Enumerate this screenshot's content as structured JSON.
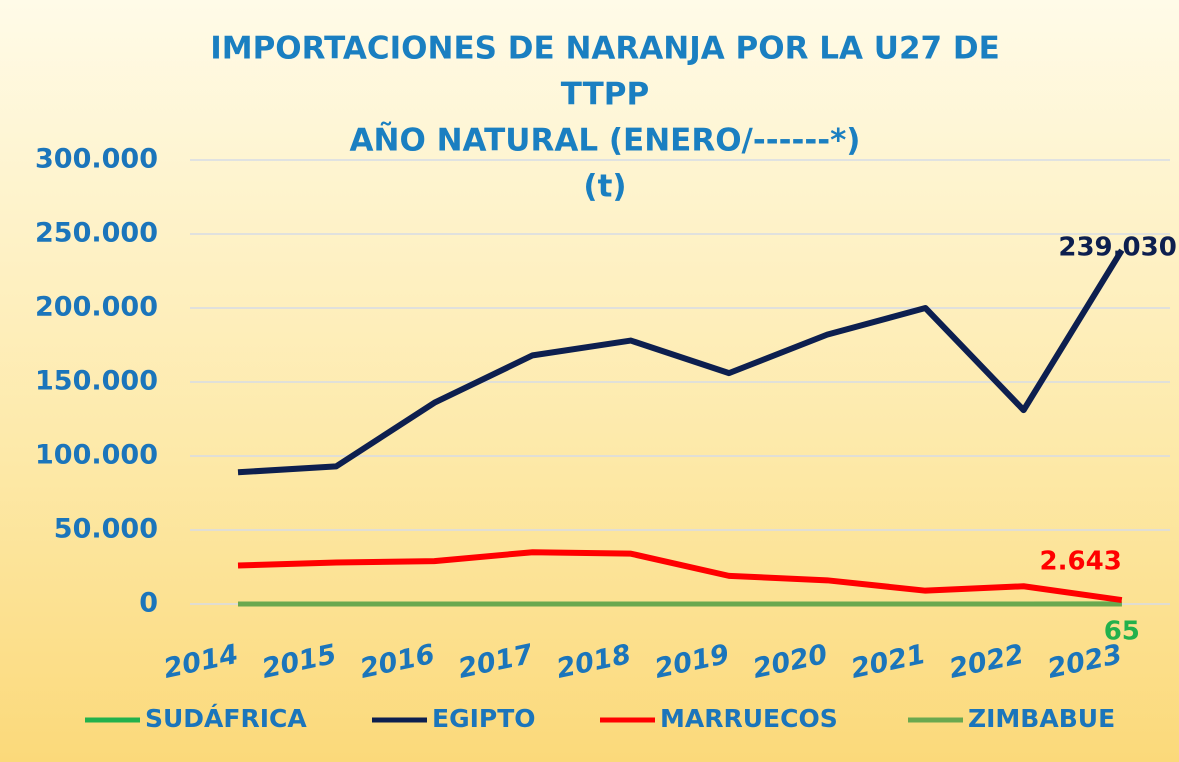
{
  "chart_data": {
    "type": "line",
    "title": [
      "IMPORTACIONES DE NARANJA POR LA U27 DE",
      "TTPP",
      "AÑO NATURAL (ENERO/------*)",
      "(t)"
    ],
    "categories": [
      "2014",
      "2015",
      "2016",
      "2017",
      "2018",
      "2019",
      "2020",
      "2021",
      "2022",
      "2023"
    ],
    "series": [
      {
        "name": "SUDÁFRICA",
        "color": "#22b14c",
        "values": [
          0,
          0,
          0,
          0,
          0,
          0,
          0,
          0,
          0,
          65
        ],
        "value_labels": [
          null,
          null,
          null,
          null,
          null,
          null,
          null,
          null,
          null,
          "65"
        ]
      },
      {
        "name": "EGIPTO",
        "color": "#0d1f4f",
        "values": [
          89000,
          93000,
          136000,
          168000,
          178000,
          156000,
          182000,
          200000,
          131000,
          239030
        ],
        "value_labels": [
          null,
          null,
          null,
          null,
          null,
          null,
          null,
          null,
          null,
          "239.030"
        ]
      },
      {
        "name": "MARRUECOS",
        "color": "#ff0000",
        "values": [
          26000,
          28000,
          29000,
          35000,
          34000,
          19000,
          16000,
          9000,
          12000,
          2643
        ],
        "value_labels": [
          null,
          null,
          null,
          null,
          null,
          null,
          null,
          null,
          null,
          "2.643"
        ]
      },
      {
        "name": "ZIMBABUE",
        "color": "#6aa84f",
        "values": [
          0,
          0,
          0,
          0,
          0,
          0,
          0,
          0,
          0,
          0
        ]
      }
    ],
    "ylim": [
      0,
      300000
    ],
    "yticks": [
      {
        "value": 0,
        "label": "0"
      },
      {
        "value": 50000,
        "label": "50.000"
      },
      {
        "value": 100000,
        "label": "100.000"
      },
      {
        "value": 150000,
        "label": "150.000"
      },
      {
        "value": 200000,
        "label": "200.000"
      },
      {
        "value": 250000,
        "label": "250.000"
      },
      {
        "value": 300000,
        "label": "300.000"
      }
    ],
    "grid": true,
    "legend": "bottom"
  }
}
